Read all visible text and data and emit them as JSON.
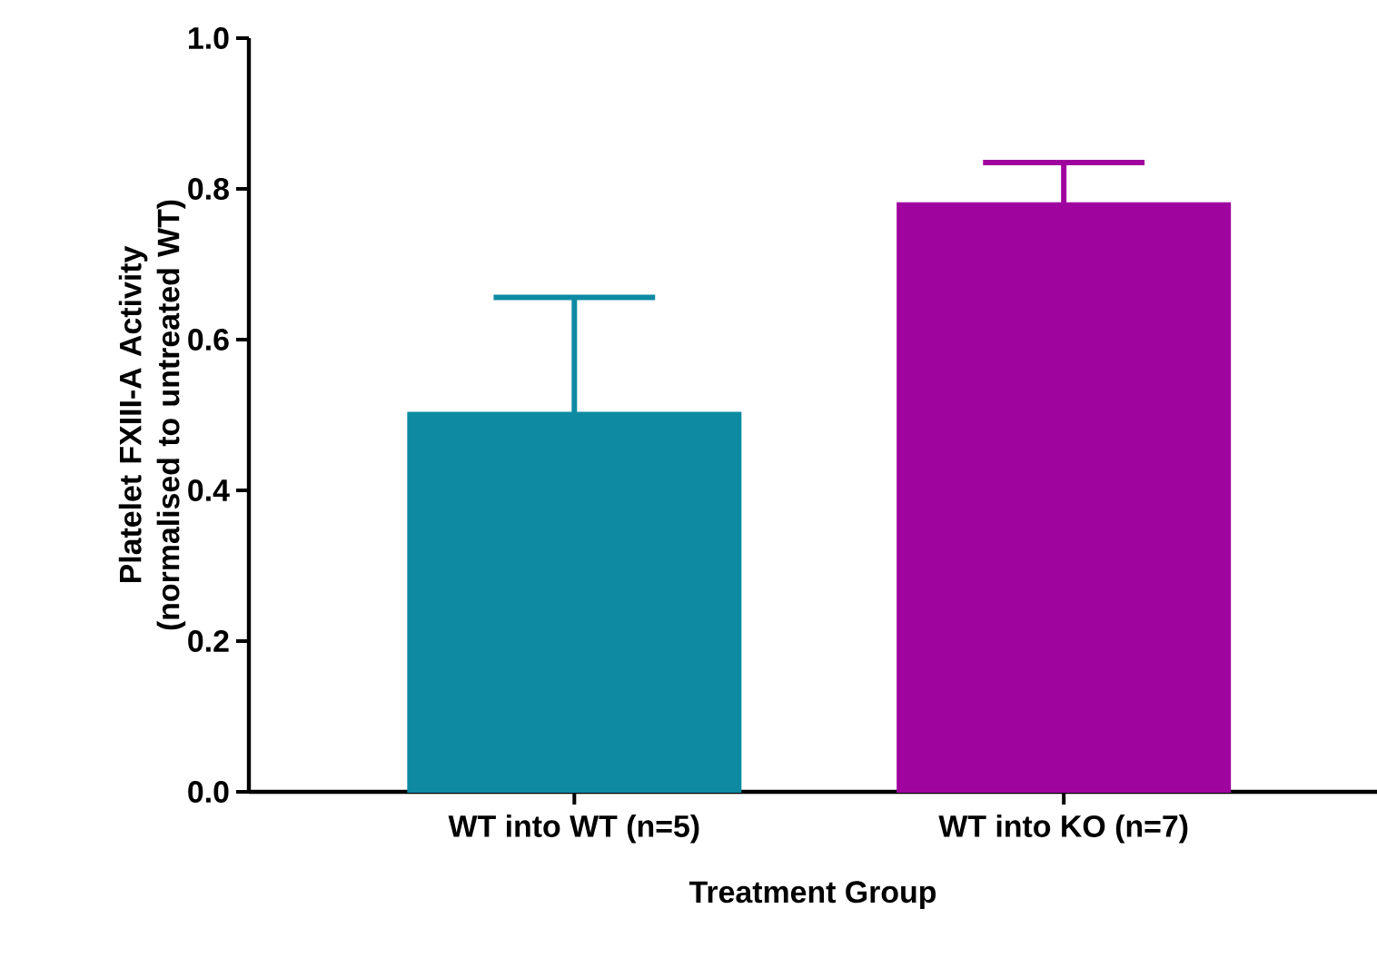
{
  "chart_data": {
    "type": "bar",
    "ylabel": "Platelet FXIII-A Activity (normalised to untreated WT)",
    "xlabel": "Treatment Group",
    "categories": [
      "WT into WT (n=5)",
      "WT into KO (n=7)"
    ],
    "values": [
      0.503,
      0.781
    ],
    "errors": [
      [
        0.503,
        0.656
      ],
      [
        0.781,
        0.835
      ]
    ],
    "colors": [
      "#0e8ba3",
      "#a0049e"
    ],
    "ylim": [
      0,
      1.0
    ],
    "yticks": [
      {
        "value": 0,
        "label": "0.0"
      },
      {
        "value": 0.2,
        "label": "0.2"
      },
      {
        "value": 0.4,
        "label": "0.4"
      },
      {
        "value": 0.6,
        "label": "0.6"
      },
      {
        "value": 0.8,
        "label": "0.8"
      },
      {
        "value": 1.0,
        "label": "1.0"
      }
    ],
    "grid": false
  }
}
